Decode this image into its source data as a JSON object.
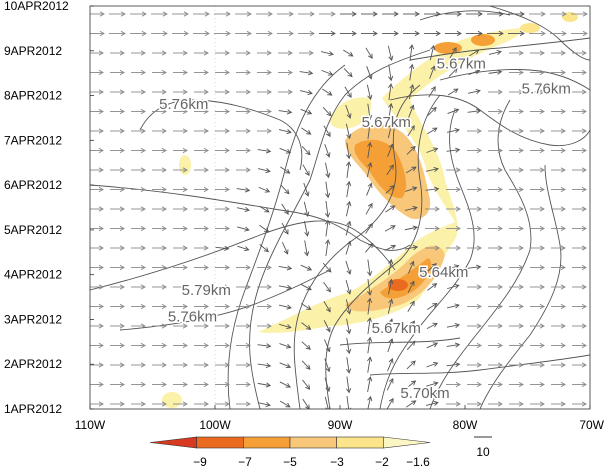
{
  "chart_data": {
    "type": "contour",
    "xlabel": "",
    "ylabel": "",
    "x_ticks": [
      "110W",
      "100W",
      "90W",
      "80W",
      "70W"
    ],
    "x_values": [
      -110,
      -100,
      -90,
      -80,
      -70
    ],
    "y_ticks": [
      "1APR2012",
      "2APR2012",
      "3APR2012",
      "4APR2012",
      "5APR2012",
      "6APR2012",
      "7APR2012",
      "8APR2012",
      "9APR2012",
      "10APR2012"
    ],
    "y_values": [
      1,
      2,
      3,
      4,
      5,
      6,
      7,
      8,
      9,
      10
    ],
    "xlim": [
      -110,
      -70
    ],
    "ylim": [
      1,
      10
    ],
    "contour_labels": [
      {
        "text": "5.67km",
        "lon": -80.3,
        "day": 8.6
      },
      {
        "text": "5.76km",
        "lon": -73.5,
        "day": 8.05
      },
      {
        "text": "5.76km",
        "lon": -102.5,
        "day": 7.7
      },
      {
        "text": "5.67km",
        "lon": -86.3,
        "day": 7.3
      },
      {
        "text": "5.64km",
        "lon": -81.7,
        "day": 3.95
      },
      {
        "text": "5.79km",
        "lon": -100.7,
        "day": 3.55
      },
      {
        "text": "5.76km",
        "lon": -101.8,
        "day": 2.95
      },
      {
        "text": "5.67km",
        "lon": -85.5,
        "day": 2.7
      },
      {
        "text": "5.70km",
        "lon": -83.2,
        "day": 1.25
      }
    ],
    "colorbar": {
      "ticks": [
        "−9",
        "−7",
        "−5",
        "−3",
        "−2",
        "−1.6"
      ],
      "colors": [
        "#d73a20",
        "#ea6a1f",
        "#f5a037",
        "#f8c77a",
        "#fbe48a",
        "#fbf6c4"
      ],
      "vector_reference": "10"
    },
    "grid": false
  }
}
